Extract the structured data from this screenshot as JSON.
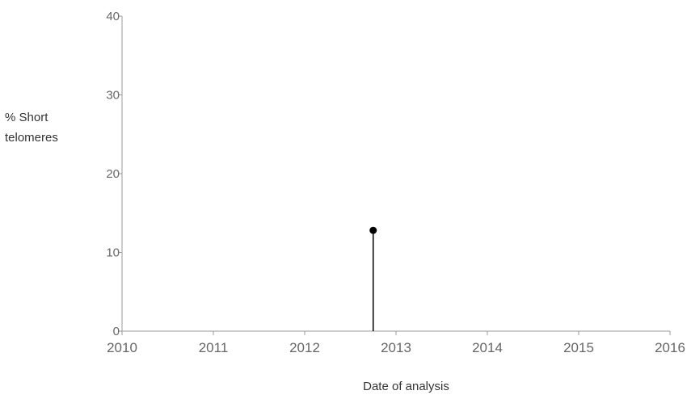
{
  "chart_data": {
    "type": "scatter",
    "title": "",
    "ylabel_lines": [
      "% Short",
      "telomeres"
    ],
    "xlabel": "Date of analysis",
    "xlim": [
      2010,
      2016
    ],
    "ylim": [
      0,
      40
    ],
    "x_ticks": [
      "2010",
      "2011",
      "2012",
      "2013",
      "2014",
      "2015",
      "2016"
    ],
    "y_ticks": [
      "0",
      "10",
      "20",
      "30",
      "40"
    ],
    "points": [
      {
        "x": 2012.75,
        "y": 12.8
      }
    ],
    "drop_lines": true,
    "grid": false,
    "colors": {
      "axis": "#999999",
      "tick_text": "#666666",
      "point": "#000000"
    }
  }
}
